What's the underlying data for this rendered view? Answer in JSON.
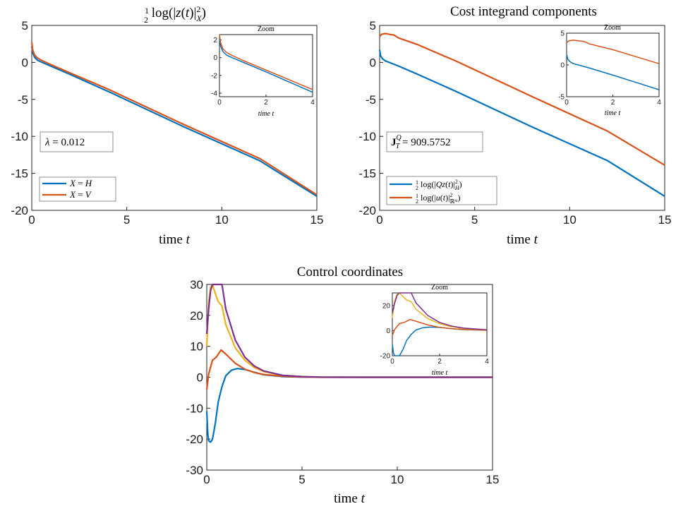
{
  "colors": {
    "blue": "#0072BD",
    "orange": "#D95319",
    "yellow": "#EDB120",
    "purple": "#7E2F8E"
  },
  "chart_data": [
    {
      "type": "line",
      "title": "½ log(|z(t)|²_X)",
      "xlabel": "time t",
      "ylabel": "",
      "xlim": [
        0,
        15
      ],
      "ylim": [
        -20,
        5
      ],
      "xticks": [
        "0",
        "5",
        "10",
        "15"
      ],
      "yticks": [
        "5",
        "0",
        "-5",
        "-10",
        "-15",
        "-20"
      ],
      "annotation": "λ = 0.012",
      "legend_position": "bottom-left",
      "series": [
        {
          "name": "X = H",
          "color": "#0072BD",
          "x": [
            0,
            0.05,
            0.15,
            0.3,
            0.5,
            1,
            2,
            4,
            8,
            12,
            15
          ],
          "y": [
            2.2,
            1.3,
            0.7,
            0.3,
            0.05,
            -0.5,
            -1.6,
            -3.9,
            -8.7,
            -13.3,
            -18.1
          ]
        },
        {
          "name": "X = V",
          "color": "#D95319",
          "x": [
            0,
            0.05,
            0.15,
            0.3,
            0.5,
            1,
            2,
            4,
            8,
            12,
            15
          ],
          "y": [
            2.7,
            1.7,
            1.0,
            0.6,
            0.3,
            -0.3,
            -1.4,
            -3.6,
            -8.4,
            -13.0,
            -17.9
          ]
        }
      ],
      "inset": {
        "title": "Zoom",
        "xlabel": "time t",
        "xlim": [
          0,
          4
        ],
        "ylim": [
          -4.4,
          2.6
        ],
        "xticks": [
          "0",
          "2",
          "4"
        ],
        "yticks": [
          "2",
          "0",
          "-2",
          "-4"
        ]
      }
    },
    {
      "type": "line",
      "title": "Cost integrand components",
      "xlabel": "time t",
      "ylabel": "",
      "xlim": [
        0,
        15
      ],
      "ylim": [
        -20,
        5
      ],
      "xticks": [
        "0",
        "5",
        "10",
        "15"
      ],
      "yticks": [
        "5",
        "0",
        "-5",
        "-10",
        "-15",
        "-20"
      ],
      "annotation": "J_T^Q = 909.5752",
      "legend_position": "bottom-left",
      "series": [
        {
          "name": "½ log(|Qz(t)|²_H)",
          "color": "#0072BD",
          "x": [
            0,
            0.05,
            0.15,
            0.3,
            0.5,
            1,
            2,
            4,
            8,
            12,
            15
          ],
          "y": [
            1.7,
            0.9,
            0.5,
            0.2,
            0.0,
            -0.5,
            -1.6,
            -3.9,
            -8.7,
            -13.3,
            -18.1
          ]
        },
        {
          "name": "½ log(|u(t)|²_ℝᴹ)",
          "color": "#D95319",
          "x": [
            0,
            0.1,
            0.3,
            0.5,
            0.75,
            1,
            2,
            4,
            8,
            12,
            15
          ],
          "y": [
            3.5,
            3.8,
            3.9,
            3.8,
            3.7,
            3.3,
            2.4,
            0.2,
            -4.6,
            -9.3,
            -13.9
          ]
        }
      ],
      "inset": {
        "title": "Zoom",
        "xlabel": "time t",
        "xlim": [
          0,
          4
        ],
        "ylim": [
          -5,
          5
        ],
        "xticks": [
          "0",
          "2",
          "4"
        ],
        "yticks": [
          "5",
          "0",
          "-5"
        ]
      }
    },
    {
      "type": "line",
      "title": "Control coordinates",
      "xlabel": "time t",
      "ylabel": "",
      "xlim": [
        0,
        15
      ],
      "ylim": [
        -30,
        30
      ],
      "xticks": [
        "0",
        "5",
        "10",
        "15"
      ],
      "yticks": [
        "30",
        "20",
        "10",
        "0",
        "-10",
        "-20",
        "-30"
      ],
      "series": [
        {
          "color": "#0072BD",
          "x": [
            0,
            0.05,
            0.1,
            0.2,
            0.3,
            0.45,
            0.6,
            0.8,
            1.0,
            1.3,
            1.6,
            2.0,
            2.5,
            3.0,
            4,
            5,
            6,
            8,
            15
          ],
          "y": [
            -11,
            -18,
            -20.5,
            -21,
            -20,
            -15,
            -8,
            -3,
            0.5,
            2.3,
            2.8,
            2.5,
            1.6,
            0.8,
            0.2,
            0.05,
            0,
            0,
            0
          ]
        },
        {
          "color": "#D95319",
          "x": [
            0,
            0.1,
            0.3,
            0.5,
            0.75,
            1.0,
            1.5,
            2.0,
            2.5,
            3,
            4,
            5,
            6,
            8,
            15
          ],
          "y": [
            -4,
            1,
            5.5,
            6.5,
            8.8,
            7.5,
            4.5,
            2.6,
            1.5,
            0.9,
            0.3,
            0.1,
            0,
            0,
            0
          ]
        },
        {
          "color": "#EDB120",
          "x": [
            0,
            0.1,
            0.2,
            0.3,
            0.4,
            0.6,
            0.8,
            1.0,
            1.5,
            2.0,
            2.5,
            3,
            4,
            5,
            6,
            8,
            15
          ],
          "y": [
            10,
            24,
            29,
            30,
            28,
            24.5,
            23,
            17,
            9.5,
            5.5,
            3.1,
            1.8,
            0.6,
            0.2,
            0.05,
            0,
            0
          ]
        },
        {
          "color": "#7E2F8E",
          "x": [
            0,
            0.1,
            0.2,
            0.3,
            0.5,
            0.8,
            1.0,
            1.5,
            2.0,
            2.5,
            3,
            4,
            5,
            6,
            8,
            15
          ],
          "y": [
            14,
            22,
            28,
            30,
            30,
            30,
            22,
            12,
            6.5,
            3.6,
            2.0,
            0.6,
            0.2,
            0.05,
            0,
            0
          ]
        }
      ],
      "inset": {
        "title": "Zoom",
        "xlabel": "time t",
        "xlim": [
          0,
          4
        ],
        "ylim": [
          -20,
          30
        ],
        "xticks": [
          "0",
          "2",
          "4"
        ],
        "yticks": [
          "20",
          "0",
          "-20"
        ]
      }
    }
  ]
}
